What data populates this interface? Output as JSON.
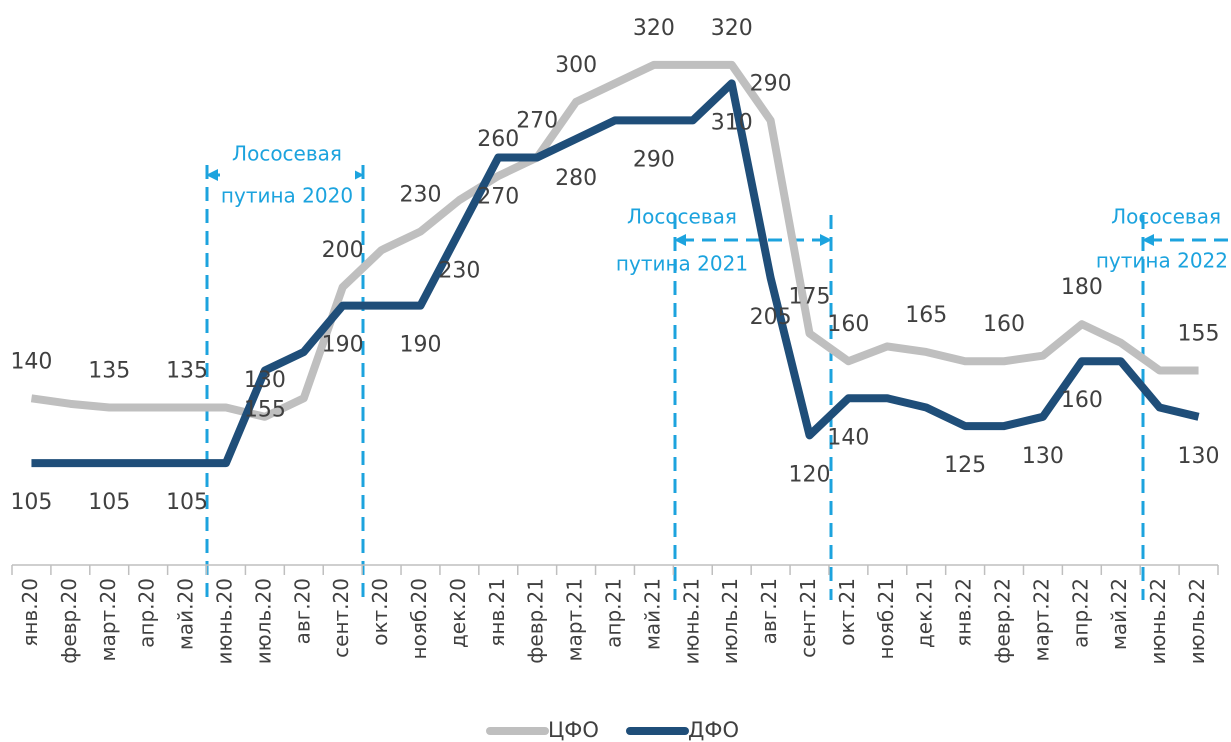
{
  "chart_data": {
    "type": "line",
    "categories": [
      "янв.20",
      "февр.20",
      "март.20",
      "апр.20",
      "май.20",
      "июнь.20",
      "июль.20",
      "авг.20",
      "сент.20",
      "окт.20",
      "нояб.20",
      "дек.20",
      "янв.21",
      "февр.21",
      "март.21",
      "апр.21",
      "май.21",
      "июнь.21",
      "июль.21",
      "авг.21",
      "сент.21",
      "окт.21",
      "нояб.21",
      "дек.21",
      "янв.22",
      "февр.22",
      "март.22",
      "апр.22",
      "май.22",
      "июнь.22",
      "июль.22"
    ],
    "series": [
      {
        "name": "ЦФО",
        "color": "#bfbfbf",
        "values": [
          140,
          137,
          135,
          135,
          135,
          135,
          130,
          140,
          200,
          220,
          230,
          247,
          260,
          270,
          300,
          310,
          320,
          320,
          320,
          290,
          175,
          160,
          168,
          165,
          160,
          160,
          163,
          180,
          170,
          155,
          155
        ],
        "value_labels": [
          "140",
          null,
          "135",
          null,
          "135",
          null,
          "130",
          null,
          "200",
          null,
          "230",
          null,
          "260",
          "270",
          "300",
          null,
          "320",
          null,
          "320",
          "290",
          "175",
          "160",
          null,
          "165",
          null,
          "160",
          null,
          "180",
          null,
          null,
          "155"
        ]
      },
      {
        "name": "ДФО",
        "color": "#1f4e79",
        "values": [
          105,
          105,
          105,
          105,
          105,
          105,
          155,
          165,
          190,
          190,
          190,
          230,
          270,
          270,
          280,
          290,
          290,
          290,
          310,
          205,
          120,
          140,
          140,
          135,
          125,
          125,
          130,
          160,
          160,
          135,
          130
        ],
        "value_labels": [
          "105",
          null,
          "105",
          null,
          "105",
          null,
          "155",
          null,
          "190",
          null,
          "190",
          "230",
          "270",
          null,
          "280",
          null,
          "290",
          null,
          "310",
          "205",
          "120",
          "140",
          null,
          null,
          "125",
          null,
          "130",
          "160",
          null,
          null,
          "130"
        ]
      }
    ],
    "ylim": [
      50,
      355
    ],
    "annotations": [
      [
        "Лососевая",
        "путина 2020"
      ],
      [
        "Лососевая",
        "путина 2021"
      ],
      [
        "Лососевая",
        "путина 2022"
      ]
    ]
  }
}
